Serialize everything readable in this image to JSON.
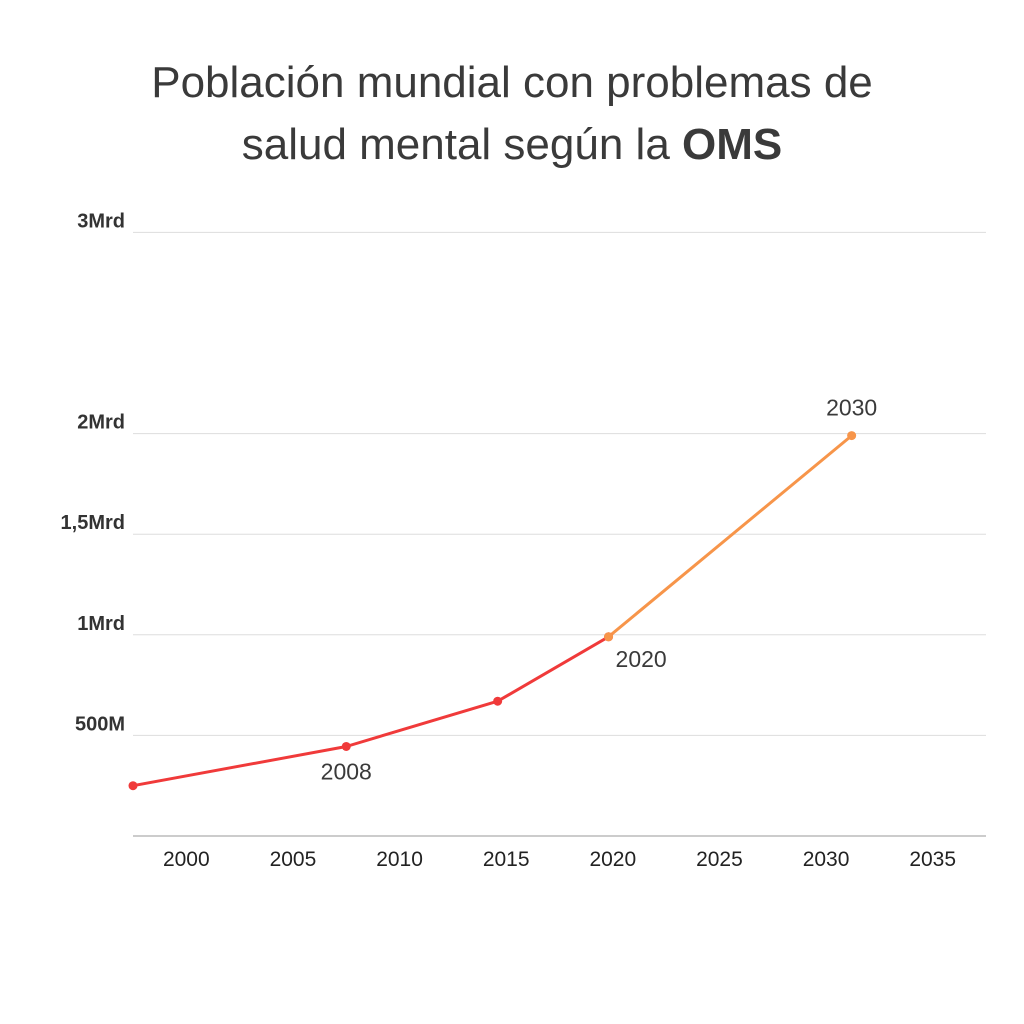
{
  "title": {
    "line1": "Población mundial con problemas de",
    "line2_prefix": "salud mental según la ",
    "line2_bold": "OMS"
  },
  "chart_data": {
    "type": "line",
    "title": "Población mundial con problemas de salud mental según la OMS",
    "xlabel": "",
    "ylabel": "",
    "xlim": [
      1997.5,
      2037.5
    ],
    "ylim": [
      0,
      3000000000
    ],
    "y_ticks": [
      {
        "value": 500000000,
        "label": "500M"
      },
      {
        "value": 1000000000,
        "label": "1Mrd"
      },
      {
        "value": 1500000000,
        "label": "1,5Mrd"
      },
      {
        "value": 2000000000,
        "label": "2Mrd"
      },
      {
        "value": 3000000000,
        "label": "3Mrd"
      }
    ],
    "x_ticks": [
      "2000",
      "2005",
      "2010",
      "2015",
      "2020",
      "2025",
      "2030",
      "2035"
    ],
    "grid": true,
    "series": [
      {
        "color": "#f03a3a",
        "points": [
          {
            "x": 1997.5,
            "y": 250000000
          },
          {
            "x": 2007.5,
            "y": 445000000,
            "label": "2008"
          },
          {
            "x": 2014.6,
            "y": 670000000
          },
          {
            "x": 2019.8,
            "y": 990000000,
            "label": "2020"
          }
        ]
      },
      {
        "color": "#f7954a",
        "points": [
          {
            "x": 2019.8,
            "y": 990000000
          },
          {
            "x": 2031.2,
            "y": 1990000000,
            "label": "2030"
          }
        ]
      }
    ]
  },
  "colors": {
    "gridline": "#dddddd",
    "axis": "#bbbbbb",
    "series_main": "#f03a3a",
    "series_projection": "#f7954a"
  }
}
